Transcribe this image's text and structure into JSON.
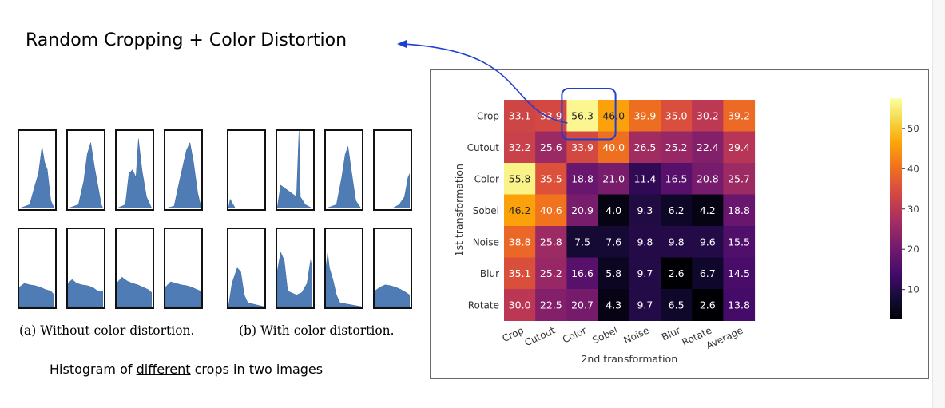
{
  "headline": "Random Cropping + Color Distortion",
  "captions": {
    "a": "(a) Without color distortion.",
    "b": "(b) With color distortion."
  },
  "bottom_note": {
    "before": "Histogram of ",
    "underlined": "different",
    "after": " crops in two images"
  },
  "histograms": {
    "color": "#4f7cb4",
    "without_distortion": [
      [
        [
          0,
          0
        ],
        [
          0.3,
          0.05
        ],
        [
          0.45,
          0.3
        ],
        [
          0.55,
          0.45
        ],
        [
          0.65,
          0.8
        ],
        [
          0.72,
          0.6
        ],
        [
          0.8,
          0.5
        ],
        [
          0.9,
          0.1
        ],
        [
          1,
          0
        ]
      ],
      [
        [
          0,
          0
        ],
        [
          0.3,
          0.05
        ],
        [
          0.45,
          0.35
        ],
        [
          0.55,
          0.7
        ],
        [
          0.65,
          0.85
        ],
        [
          0.75,
          0.55
        ],
        [
          0.85,
          0.3
        ],
        [
          0.95,
          0.05
        ],
        [
          1,
          0
        ]
      ],
      [
        [
          0,
          0
        ],
        [
          0.25,
          0.05
        ],
        [
          0.35,
          0.45
        ],
        [
          0.45,
          0.5
        ],
        [
          0.55,
          0.4
        ],
        [
          0.62,
          0.9
        ],
        [
          0.72,
          0.5
        ],
        [
          0.85,
          0.15
        ],
        [
          1,
          0
        ]
      ],
      [
        [
          0,
          0
        ],
        [
          0.25,
          0.03
        ],
        [
          0.4,
          0.35
        ],
        [
          0.5,
          0.55
        ],
        [
          0.6,
          0.75
        ],
        [
          0.7,
          0.85
        ],
        [
          0.8,
          0.6
        ],
        [
          0.92,
          0.2
        ],
        [
          1,
          0.05
        ]
      ],
      [
        [
          0,
          0.25
        ],
        [
          0.15,
          0.3
        ],
        [
          0.3,
          0.28
        ],
        [
          0.45,
          0.27
        ],
        [
          0.6,
          0.25
        ],
        [
          0.75,
          0.22
        ],
        [
          0.9,
          0.2
        ],
        [
          1,
          0.15
        ]
      ],
      [
        [
          0,
          0.3
        ],
        [
          0.12,
          0.35
        ],
        [
          0.25,
          0.3
        ],
        [
          0.4,
          0.28
        ],
        [
          0.55,
          0.27
        ],
        [
          0.7,
          0.25
        ],
        [
          0.85,
          0.2
        ],
        [
          1,
          0.2
        ]
      ],
      [
        [
          0,
          0.3
        ],
        [
          0.15,
          0.38
        ],
        [
          0.3,
          0.33
        ],
        [
          0.45,
          0.3
        ],
        [
          0.6,
          0.28
        ],
        [
          0.75,
          0.25
        ],
        [
          0.9,
          0.22
        ],
        [
          1,
          0.18
        ]
      ],
      [
        [
          0,
          0.25
        ],
        [
          0.15,
          0.32
        ],
        [
          0.3,
          0.3
        ],
        [
          0.45,
          0.28
        ],
        [
          0.6,
          0.27
        ],
        [
          0.75,
          0.25
        ],
        [
          0.9,
          0.22
        ],
        [
          1,
          0.2
        ]
      ]
    ],
    "with_distortion": [
      [
        [
          0,
          0
        ],
        [
          0.05,
          0.12
        ],
        [
          0.12,
          0.06
        ],
        [
          0.2,
          0
        ],
        [
          1,
          0
        ]
      ],
      [
        [
          0,
          0
        ],
        [
          0.1,
          0.3
        ],
        [
          0.25,
          0.25
        ],
        [
          0.4,
          0.2
        ],
        [
          0.55,
          0.15
        ],
        [
          0.62,
          1
        ],
        [
          0.66,
          0.15
        ],
        [
          0.8,
          0.05
        ],
        [
          1,
          0
        ]
      ],
      [
        [
          0,
          0
        ],
        [
          0.3,
          0.05
        ],
        [
          0.45,
          0.4
        ],
        [
          0.55,
          0.7
        ],
        [
          0.63,
          0.8
        ],
        [
          0.72,
          0.5
        ],
        [
          0.85,
          0.1
        ],
        [
          1,
          0
        ]
      ],
      [
        [
          0,
          0
        ],
        [
          0.5,
          0
        ],
        [
          0.7,
          0.05
        ],
        [
          0.85,
          0.15
        ],
        [
          0.95,
          0.4
        ],
        [
          1,
          0.45
        ]
      ],
      [
        [
          0,
          0
        ],
        [
          0.1,
          0.3
        ],
        [
          0.25,
          0.5
        ],
        [
          0.35,
          0.45
        ],
        [
          0.45,
          0.15
        ],
        [
          0.55,
          0.05
        ],
        [
          1,
          0
        ]
      ],
      [
        [
          0,
          0.45
        ],
        [
          0.1,
          0.7
        ],
        [
          0.2,
          0.6
        ],
        [
          0.3,
          0.2
        ],
        [
          0.55,
          0.15
        ],
        [
          0.7,
          0.18
        ],
        [
          0.85,
          0.3
        ],
        [
          0.95,
          0.6
        ],
        [
          1,
          0.5
        ]
      ],
      [
        [
          0,
          0.5
        ],
        [
          0.05,
          0.7
        ],
        [
          0.1,
          0.5
        ],
        [
          0.2,
          0.35
        ],
        [
          0.3,
          0.15
        ],
        [
          0.4,
          0.05
        ],
        [
          1,
          0
        ]
      ],
      [
        [
          0,
          0.2
        ],
        [
          0.15,
          0.25
        ],
        [
          0.3,
          0.28
        ],
        [
          0.45,
          0.27
        ],
        [
          0.6,
          0.25
        ],
        [
          0.75,
          0.22
        ],
        [
          0.9,
          0.18
        ],
        [
          1,
          0.15
        ]
      ]
    ]
  },
  "chart_data": {
    "type": "heatmap",
    "xlabel": "2nd transformation",
    "ylabel": "1st transformation",
    "columns": [
      "Crop",
      "Cutout",
      "Color",
      "Sobel",
      "Noise",
      "Blur",
      "Rotate",
      "Average"
    ],
    "rows": [
      "Crop",
      "Cutout",
      "Color",
      "Sobel",
      "Noise",
      "Blur",
      "Rotate"
    ],
    "values": [
      [
        33.1,
        33.9,
        56.3,
        46.0,
        39.9,
        35.0,
        30.2,
        39.2
      ],
      [
        32.2,
        25.6,
        33.9,
        40.0,
        26.5,
        25.2,
        22.4,
        29.4
      ],
      [
        55.8,
        35.5,
        18.8,
        21.0,
        11.4,
        16.5,
        20.8,
        25.7
      ],
      [
        46.2,
        40.6,
        20.9,
        4.0,
        9.3,
        6.2,
        4.2,
        18.8
      ],
      [
        38.8,
        25.8,
        7.5,
        7.6,
        9.8,
        9.8,
        9.6,
        15.5
      ],
      [
        35.1,
        25.2,
        16.6,
        5.8,
        9.7,
        2.6,
        6.7,
        14.5
      ],
      [
        30.0,
        22.5,
        20.7,
        4.3,
        9.7,
        6.5,
        2.6,
        13.8
      ]
    ],
    "colorbar": {
      "min": 2.6,
      "max": 57.5,
      "ticks": [
        10,
        20,
        30,
        40,
        50
      ]
    },
    "colormap": "inferno",
    "highlight": {
      "row": 0,
      "col": 2,
      "color": "#1f3fd1"
    },
    "annotation_arrow_color": "#1f3fd1"
  }
}
